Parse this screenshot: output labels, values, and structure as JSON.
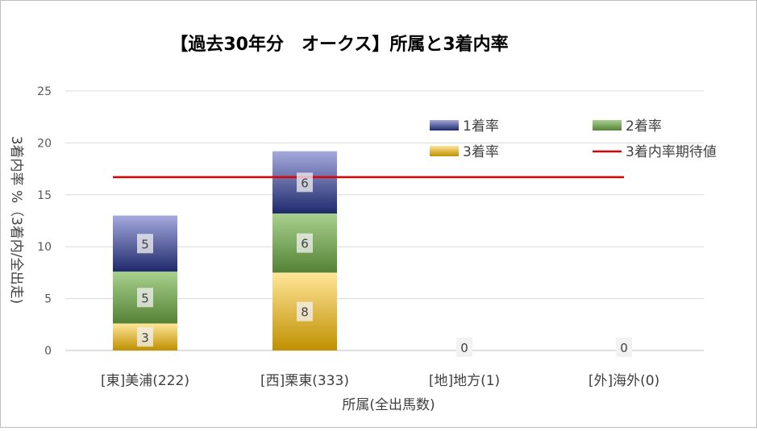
{
  "chart_data": {
    "type": "bar",
    "stacked": true,
    "title": "【過去30年分　オークス】所属と3着内率",
    "xlabel": "所属(全出馬数)",
    "ylabel": "3着内率 %（3着内/全出走)",
    "ylim": [
      0,
      25
    ],
    "yticks": [
      0,
      5,
      10,
      15,
      20,
      25
    ],
    "grid": true,
    "legend_position": "top-right",
    "categories": [
      "[東]美浦(222)",
      "[西]栗東(333)",
      "[地]地方(1)",
      "[外]海外(0)"
    ],
    "series": [
      {
        "name": "3着率",
        "values": [
          3,
          8,
          0,
          0
        ],
        "labels": [
          "3",
          "8",
          "0",
          "0"
        ],
        "color_top": "#ffe699",
        "color_bottom": "#bf9000"
      },
      {
        "name": "2着率",
        "values": [
          5,
          6,
          0,
          0
        ],
        "labels": [
          "5",
          "6",
          "",
          ""
        ],
        "color_top": "#a9d18e",
        "color_bottom": "#548235"
      },
      {
        "name": "1着率",
        "values": [
          5,
          6,
          0,
          0
        ],
        "labels": [
          "5",
          "6",
          "",
          ""
        ],
        "color_top": "#a5a9dd",
        "color_bottom": "#1f2a6b"
      }
    ],
    "stack_totals": [
      13,
      19.2,
      0,
      0
    ],
    "segment_heights": [
      [
        2.6,
        5.0,
        5.4
      ],
      [
        7.5,
        5.7,
        6.0
      ],
      [
        0,
        0,
        0
      ],
      [
        0,
        0,
        0
      ]
    ],
    "reference_line": {
      "name": "3着内率期待値",
      "value": 16.7,
      "color": "#e00000"
    },
    "legend_order": [
      "1着率",
      "2着率",
      "3着率",
      "3着内率期待値"
    ]
  }
}
